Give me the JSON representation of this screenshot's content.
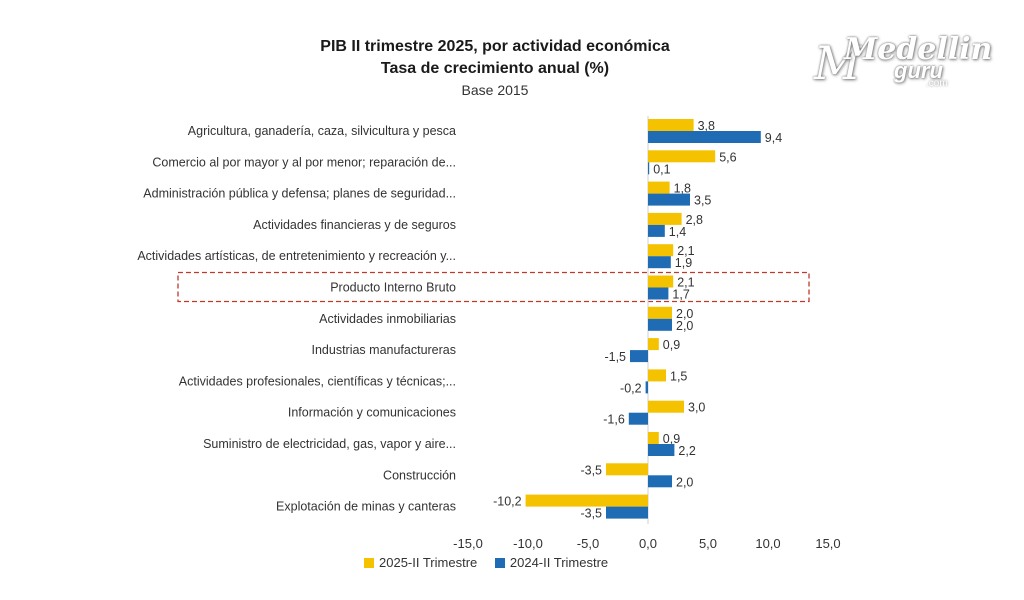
{
  "chart_data": {
    "type": "bar",
    "orientation": "horizontal",
    "title": "PIB II trimestre 2025, por actividad económica",
    "subtitle": "Tasa de crecimiento anual (%)",
    "note": "Base 2015",
    "categories": [
      "Agricultura, ganadería, caza, silvicultura y pesca",
      "Comercio al por mayor y al por menor; reparación de...",
      "Administración pública y defensa; planes de seguridad...",
      "Actividades financieras y de seguros",
      "Actividades artísticas, de entretenimiento y recreación y...",
      "Producto Interno Bruto",
      "Actividades inmobiliarias",
      "Industrias manufactureras",
      "Actividades profesionales, científicas y técnicas;...",
      "Información y comunicaciones",
      "Suministro de electricidad, gas, vapor y aire...",
      "Construcción",
      "Explotación de minas y canteras"
    ],
    "series": [
      {
        "name": "2025-II Trimestre",
        "color": "#F5C200",
        "values": [
          3.8,
          5.6,
          1.8,
          2.8,
          2.1,
          2.1,
          2.0,
          0.9,
          1.5,
          3.0,
          0.9,
          -3.5,
          -10.2
        ],
        "labels": [
          "3,8",
          "5,6",
          "1,8",
          "2,8",
          "2,1",
          "2,1",
          "2,0",
          "0,9",
          "1,5",
          "3,0",
          "0,9",
          "-3,5",
          "-10,2"
        ]
      },
      {
        "name": "2024-II Trimestre",
        "color": "#1F6CB5",
        "values": [
          9.4,
          0.1,
          3.5,
          1.4,
          1.9,
          1.7,
          2.0,
          -1.5,
          -0.2,
          -1.6,
          2.2,
          2.0,
          -3.5
        ],
        "labels": [
          "9,4",
          "0,1",
          "3,5",
          "1,4",
          "1,9",
          "1,7",
          "2,0",
          "-1,5",
          "-0,2",
          "-1,6",
          "2,2",
          "2,0",
          "-3,5"
        ]
      }
    ],
    "xlim": [
      -15,
      15
    ],
    "xticks": [
      -15,
      -10,
      -5,
      0,
      5,
      10,
      15
    ],
    "xtick_labels": [
      "-15,0",
      "-10,0",
      "-5,0",
      "0,0",
      "5,0",
      "10,0",
      "15,0"
    ],
    "highlight_category": "Producto Interno Bruto",
    "highlight_color": "#C0392B",
    "legend_position": "bottom"
  },
  "watermark": {
    "line1": "Medellin",
    "line2": "guru",
    "line3": ".com"
  }
}
